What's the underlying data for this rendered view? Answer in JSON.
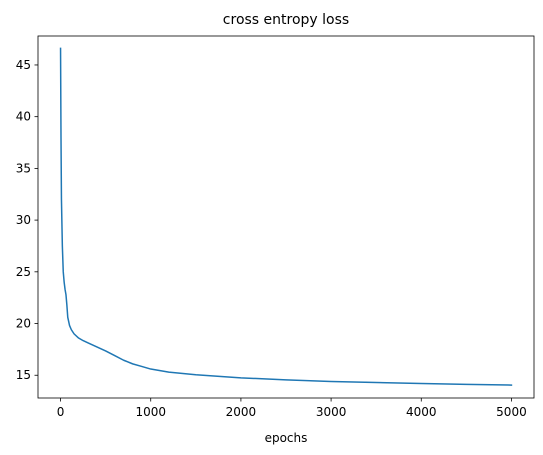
{
  "chart_data": {
    "type": "line",
    "title": "cross entropy loss",
    "xlabel": "epochs",
    "ylabel": "",
    "xlim": [
      -250,
      5250
    ],
    "ylim": [
      12.8,
      47.8
    ],
    "xticks": [
      0,
      1000,
      2000,
      3000,
      4000,
      5000
    ],
    "yticks": [
      15,
      20,
      25,
      30,
      35,
      40,
      45
    ],
    "grid": false,
    "legend": "none",
    "series": [
      {
        "color": "#1f77b4",
        "x": [
          0,
          5,
          10,
          20,
          30,
          40,
          50,
          60,
          70,
          80,
          90,
          100,
          120,
          150,
          200,
          250,
          300,
          400,
          500,
          600,
          700,
          800,
          900,
          1000,
          1200,
          1500,
          2000,
          2500,
          3000,
          3500,
          4000,
          4500,
          5000
        ],
        "y": [
          46.6,
          38.0,
          32.0,
          27.5,
          25.0,
          24.0,
          23.3,
          22.8,
          21.8,
          20.6,
          20.2,
          19.8,
          19.4,
          19.0,
          18.6,
          18.35,
          18.15,
          17.75,
          17.35,
          16.9,
          16.45,
          16.1,
          15.85,
          15.6,
          15.3,
          15.05,
          14.75,
          14.55,
          14.4,
          14.3,
          14.2,
          14.12,
          14.05
        ]
      }
    ]
  }
}
